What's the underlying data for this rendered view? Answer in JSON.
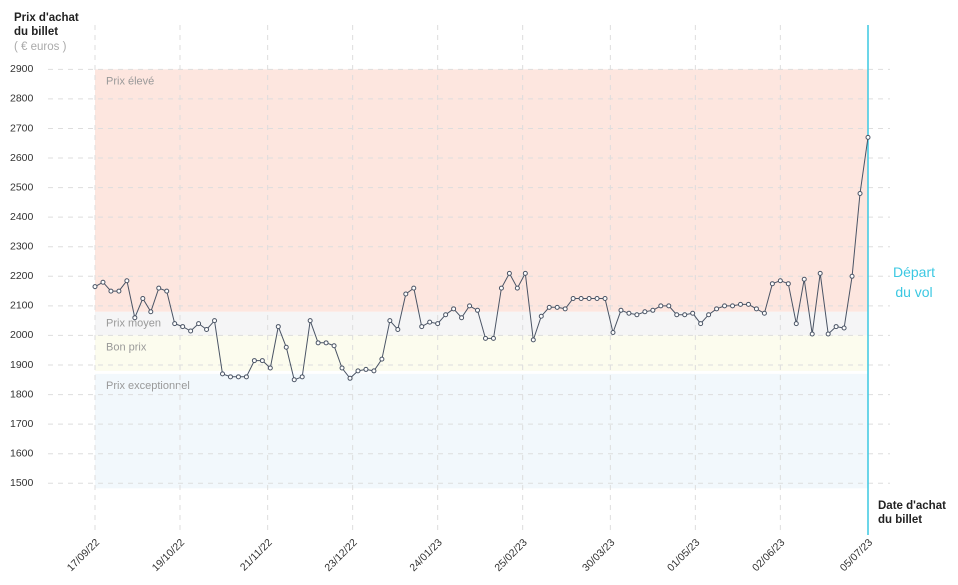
{
  "chart_data": {
    "type": "line",
    "y_label": "Prix d'achat du billet",
    "y_unit": "( € euros )",
    "x_label": "Date d'achat du billet",
    "color": "#4a5465",
    "x": [
      "2022-09-17",
      "2022-09-20",
      "2022-09-23",
      "2022-09-26",
      "2022-09-29",
      "2022-10-02",
      "2022-10-05",
      "2022-10-08",
      "2022-10-11",
      "2022-10-14",
      "2022-10-17",
      "2022-10-20",
      "2022-10-23",
      "2022-10-26",
      "2022-10-29",
      "2022-11-01",
      "2022-11-04",
      "2022-11-07",
      "2022-11-10",
      "2022-11-13",
      "2022-11-16",
      "2022-11-19",
      "2022-11-22",
      "2022-11-25",
      "2022-11-28",
      "2022-12-01",
      "2022-12-04",
      "2022-12-07",
      "2022-12-10",
      "2022-12-13",
      "2022-12-16",
      "2022-12-19",
      "2022-12-22",
      "2022-12-25",
      "2022-12-28",
      "2022-12-31",
      "2023-01-03",
      "2023-01-06",
      "2023-01-09",
      "2023-01-12",
      "2023-01-15",
      "2023-01-18",
      "2023-01-21",
      "2023-01-24",
      "2023-01-27",
      "2023-01-30",
      "2023-02-02",
      "2023-02-05",
      "2023-02-08",
      "2023-02-11",
      "2023-02-14",
      "2023-02-17",
      "2023-02-20",
      "2023-02-23",
      "2023-02-26",
      "2023-03-01",
      "2023-03-04",
      "2023-03-07",
      "2023-03-10",
      "2023-03-13",
      "2023-03-16",
      "2023-03-19",
      "2023-03-22",
      "2023-03-25",
      "2023-03-28",
      "2023-03-31",
      "2023-04-03",
      "2023-04-06",
      "2023-04-09",
      "2023-04-12",
      "2023-04-15",
      "2023-04-18",
      "2023-04-21",
      "2023-04-24",
      "2023-04-27",
      "2023-04-30",
      "2023-05-03",
      "2023-05-06",
      "2023-05-09",
      "2023-05-12",
      "2023-05-15",
      "2023-05-18",
      "2023-05-21",
      "2023-05-24",
      "2023-05-27",
      "2023-05-30",
      "2023-06-02",
      "2023-06-05",
      "2023-06-08",
      "2023-06-11",
      "2023-06-14",
      "2023-06-17",
      "2023-06-20",
      "2023-06-23",
      "2023-06-26",
      "2023-06-29",
      "2023-07-02",
      "2023-07-05"
    ],
    "values": [
      2165,
      2180,
      2150,
      2150,
      2185,
      2060,
      2125,
      2080,
      2160,
      2150,
      2040,
      2030,
      2015,
      2040,
      2020,
      2050,
      1870,
      1860,
      1860,
      1860,
      1915,
      1915,
      1890,
      2030,
      1960,
      1850,
      1860,
      2050,
      1975,
      1975,
      1965,
      1890,
      1855,
      1880,
      1885,
      1880,
      1920,
      2050,
      2020,
      2140,
      2160,
      2030,
      2045,
      2040,
      2070,
      2090,
      2060,
      2100,
      2085,
      1990,
      1990,
      2160,
      2210,
      2160,
      2210,
      1985,
      2065,
      2095,
      2095,
      2090,
      2125,
      2125,
      2125,
      2125,
      2125,
      2010,
      2085,
      2075,
      2070,
      2080,
      2085,
      2100,
      2100,
      2070,
      2070,
      2075,
      2040,
      2070,
      2090,
      2100,
      2100,
      2105,
      2105,
      2090,
      2075,
      2175,
      2185,
      2175,
      2040,
      2190,
      2005,
      2210,
      2005,
      2030,
      2025,
      2200,
      2480,
      2670
    ],
    "xlim": [
      "2022-09-17",
      "2023-07-05"
    ],
    "xticks": [
      {
        "value": "2022-09-17",
        "label": "17/09/22"
      },
      {
        "value": "2022-10-19",
        "label": "19/10/22"
      },
      {
        "value": "2022-11-21",
        "label": "21/11/22"
      },
      {
        "value": "2022-12-23",
        "label": "23/12/22"
      },
      {
        "value": "2023-01-24",
        "label": "24/01/23"
      },
      {
        "value": "2023-02-25",
        "label": "25/02/23"
      },
      {
        "value": "2023-03-30",
        "label": "30/03/23"
      },
      {
        "value": "2023-05-01",
        "label": "01/05/23"
      },
      {
        "value": "2023-06-02",
        "label": "02/06/23"
      },
      {
        "value": "2023-07-05",
        "label": "05/07/23"
      }
    ],
    "ylim": [
      1325,
      3050
    ],
    "yticks": [
      1500,
      1600,
      1700,
      1800,
      1900,
      2000,
      2100,
      2200,
      2300,
      2400,
      2500,
      2600,
      2700,
      2800,
      2900
    ],
    "grid": true,
    "bands": [
      {
        "label": "Prix élevé",
        "range": [
          2080,
          2900
        ],
        "color": "#fde6df"
      },
      {
        "label": "Prix moyen",
        "range": [
          2000,
          2080
        ],
        "color": "#f5f5f6"
      },
      {
        "label": "Bon prix",
        "range": [
          1880,
          2000
        ],
        "color": "#fcfcee"
      },
      {
        "label": "Prix exceptionnel",
        "range": [
          1483,
          1870
        ],
        "color": "#f2f8fc"
      }
    ],
    "departure": {
      "label": "Départ du vol",
      "x": "2023-07-05",
      "color": "#3cc8e2"
    }
  }
}
